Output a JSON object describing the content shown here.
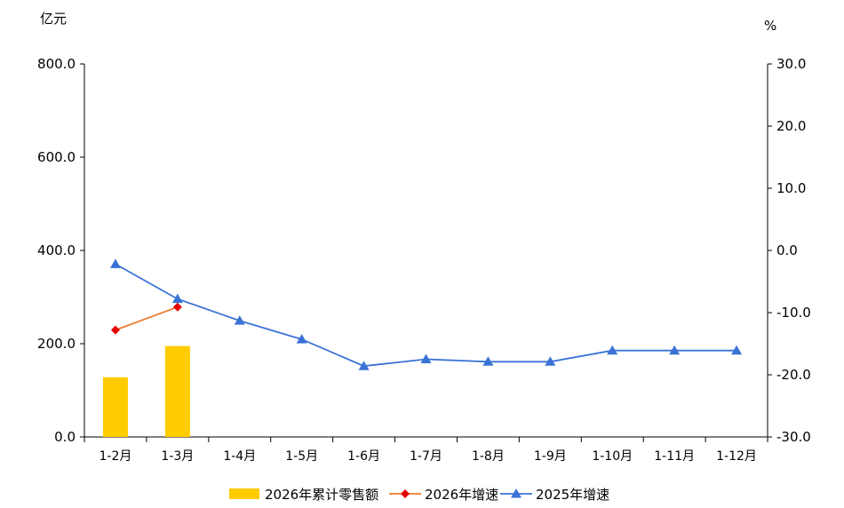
{
  "chart_data": {
    "type": "bar",
    "categories": [
      "1-2月",
      "1-3月",
      "1-4月",
      "1-5月",
      "1-6月",
      "1-7月",
      "1-8月",
      "1-9月",
      "1-10月",
      "1-11月",
      "1-12月"
    ],
    "y_left": {
      "unit_label": "亿元",
      "ticks": [
        "800.0",
        "600.0",
        "400.0",
        "200.0",
        "0.0"
      ],
      "range": [
        0,
        800
      ]
    },
    "y_right": {
      "unit_label": "%",
      "ticks": [
        "30.0",
        "20.0",
        "10.0",
        "0.0",
        "-10.0",
        "-20.0",
        "-30.0"
      ],
      "range": [
        -30,
        30
      ]
    },
    "series": [
      {
        "name": "2026年累计零售额",
        "kind": "bar",
        "axis": "left",
        "color": "#FFCC00",
        "values": [
          128,
          195,
          null,
          null,
          null,
          null,
          null,
          null,
          null,
          null,
          null
        ]
      },
      {
        "name": "2026年增速",
        "kind": "line",
        "axis": "right",
        "color": "#ED7D31",
        "marker": "diamond",
        "marker_color": "#E60000",
        "values": [
          -12.8,
          -9.1,
          null,
          null,
          null,
          null,
          null,
          null,
          null,
          null,
          null
        ]
      },
      {
        "name": "2025年增速",
        "kind": "line",
        "axis": "right",
        "color": "#3A73D6",
        "marker": "triangle",
        "marker_color": "#3A73D6",
        "values": [
          -2.2,
          -7.8,
          -11.3,
          -14.3,
          -18.6,
          -17.5,
          -17.9,
          -17.9,
          -16.1,
          -16.1,
          -16.1
        ]
      }
    ],
    "legend_position": "bottom",
    "grid": false
  }
}
